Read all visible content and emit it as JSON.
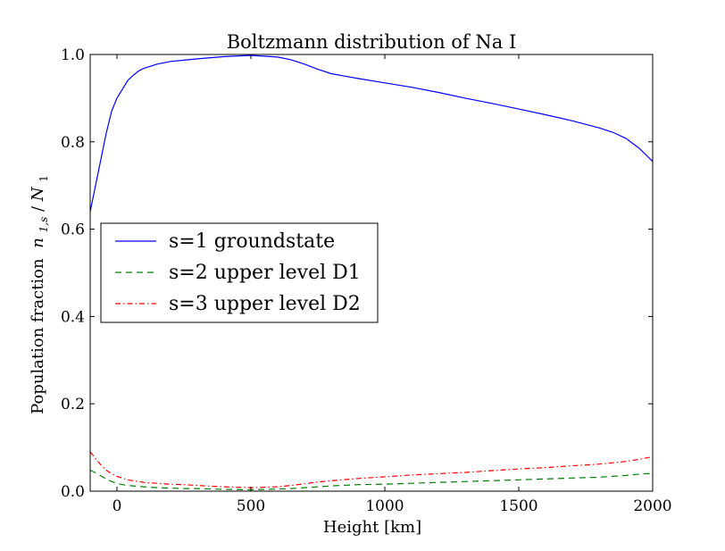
{
  "chart_data": {
    "type": "line",
    "title": "Boltzmann distribution of Na I",
    "xlabel": "Height [km]",
    "ylabel": "Population fraction",
    "ylabel_math": "n",
    "ylabel_math_sub": "1,s",
    "ylabel_math_den": "N",
    "ylabel_math_den_sub": "1",
    "xlim": [
      -100,
      2000
    ],
    "ylim": [
      0.0,
      1.0
    ],
    "xticks": [
      0,
      500,
      1000,
      1500,
      2000
    ],
    "xtick_labels": [
      "0",
      "500",
      "1000",
      "1500",
      "2000"
    ],
    "yticks": [
      0.0,
      0.2,
      0.4,
      0.6,
      0.8,
      1.0
    ],
    "ytick_labels": [
      "0.0",
      "0.2",
      "0.4",
      "0.6",
      "0.8",
      "1.0"
    ],
    "grid": false,
    "legend_position": "center-left",
    "x": [
      -100,
      -80,
      -60,
      -40,
      -20,
      0,
      20,
      40,
      60,
      80,
      100,
      150,
      200,
      250,
      300,
      400,
      500,
      600,
      650,
      700,
      750,
      800,
      900,
      1000,
      1100,
      1200,
      1300,
      1400,
      1500,
      1600,
      1700,
      1800,
      1850,
      1900,
      1950,
      2000
    ],
    "series": [
      {
        "name": "s=1 groundstate",
        "color": "#0000ff",
        "style": "solid",
        "values": [
          0.64,
          0.7,
          0.76,
          0.82,
          0.87,
          0.9,
          0.92,
          0.94,
          0.952,
          0.962,
          0.968,
          0.978,
          0.984,
          0.987,
          0.99,
          0.995,
          0.998,
          0.994,
          0.988,
          0.978,
          0.966,
          0.956,
          0.945,
          0.935,
          0.925,
          0.913,
          0.9,
          0.888,
          0.875,
          0.862,
          0.848,
          0.832,
          0.822,
          0.808,
          0.785,
          0.755
        ]
      },
      {
        "name": "s=2 upper level D1",
        "color": "#008000",
        "style": "dashed",
        "values": [
          0.048,
          0.042,
          0.035,
          0.028,
          0.022,
          0.018,
          0.015,
          0.013,
          0.012,
          0.011,
          0.01,
          0.008,
          0.007,
          0.006,
          0.006,
          0.004,
          0.003,
          0.005,
          0.006,
          0.008,
          0.01,
          0.012,
          0.015,
          0.016,
          0.018,
          0.02,
          0.022,
          0.024,
          0.026,
          0.028,
          0.03,
          0.032,
          0.034,
          0.036,
          0.039,
          0.041
        ]
      },
      {
        "name": "s=3 upper level D2",
        "color": "#ff0000",
        "style": "dashdot",
        "values": [
          0.09,
          0.075,
          0.06,
          0.048,
          0.04,
          0.034,
          0.03,
          0.026,
          0.024,
          0.022,
          0.02,
          0.018,
          0.016,
          0.015,
          0.013,
          0.01,
          0.008,
          0.01,
          0.013,
          0.017,
          0.021,
          0.024,
          0.029,
          0.033,
          0.037,
          0.04,
          0.043,
          0.047,
          0.051,
          0.054,
          0.058,
          0.062,
          0.065,
          0.068,
          0.073,
          0.079
        ]
      }
    ]
  }
}
